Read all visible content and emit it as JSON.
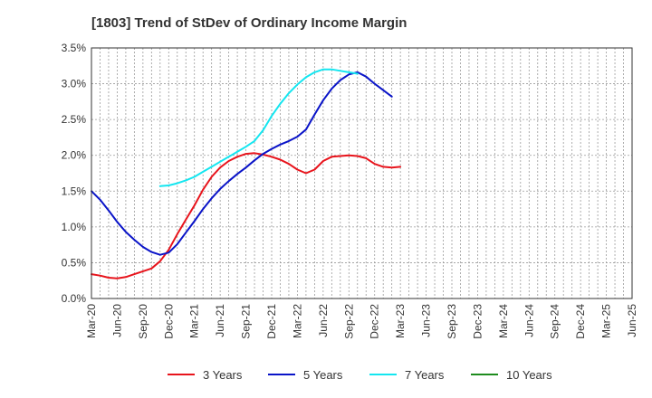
{
  "chart_data": {
    "type": "line",
    "title": "[1803]  Trend of StDev of Ordinary Income Margin",
    "xlabel": "",
    "ylabel": "",
    "ylim": [
      0,
      3.5
    ],
    "yticks": [
      "0.0%",
      "0.5%",
      "1.0%",
      "1.5%",
      "2.0%",
      "2.5%",
      "3.0%",
      "3.5%"
    ],
    "ytick_values": [
      0,
      0.5,
      1.0,
      1.5,
      2.0,
      2.5,
      3.0,
      3.5
    ],
    "xticks": [
      "Mar-20",
      "Jun-20",
      "Sep-20",
      "Dec-20",
      "Mar-21",
      "Jun-21",
      "Sep-21",
      "Dec-21",
      "Mar-22",
      "Jun-22",
      "Sep-22",
      "Dec-22",
      "Mar-23",
      "Jun-23",
      "Sep-23",
      "Dec-23",
      "Mar-24",
      "Jun-24",
      "Sep-24",
      "Dec-24",
      "Mar-25",
      "Jun-25"
    ],
    "grid": true,
    "legend_position": "bottom",
    "series": [
      {
        "name": "3 Years",
        "color": "#e8141c",
        "start_index": 0,
        "values": [
          0.34,
          0.32,
          0.29,
          0.28,
          0.3,
          0.34,
          0.38,
          0.42,
          0.52,
          0.68,
          0.9,
          1.1,
          1.3,
          1.52,
          1.7,
          1.83,
          1.92,
          1.98,
          2.02,
          2.03,
          2.01,
          1.98,
          1.94,
          1.88,
          1.8,
          1.75,
          1.8,
          1.92,
          1.98,
          1.99,
          2.0,
          1.99,
          1.96,
          1.88,
          1.84,
          1.83,
          1.84
        ]
      },
      {
        "name": "5 Years",
        "color": "#0a14c8",
        "start_index": 0,
        "values": [
          1.5,
          1.38,
          1.23,
          1.07,
          0.93,
          0.82,
          0.72,
          0.65,
          0.61,
          0.64,
          0.76,
          0.92,
          1.08,
          1.25,
          1.4,
          1.53,
          1.64,
          1.74,
          1.83,
          1.93,
          2.02,
          2.09,
          2.15,
          2.2,
          2.26,
          2.36,
          2.57,
          2.77,
          2.93,
          3.05,
          3.13,
          3.16,
          3.1,
          3.0,
          2.91,
          2.82
        ]
      },
      {
        "name": "7 Years",
        "color": "#14e6f0",
        "start_index": 8,
        "values": [
          1.57,
          1.58,
          1.61,
          1.65,
          1.7,
          1.77,
          1.84,
          1.91,
          1.98,
          2.05,
          2.12,
          2.2,
          2.35,
          2.55,
          2.72,
          2.87,
          2.99,
          3.09,
          3.16,
          3.2,
          3.2,
          3.18,
          3.16,
          3.14
        ]
      },
      {
        "name": "10 Years",
        "color": "#1e8c1e",
        "start_index": 0,
        "values": []
      }
    ]
  }
}
